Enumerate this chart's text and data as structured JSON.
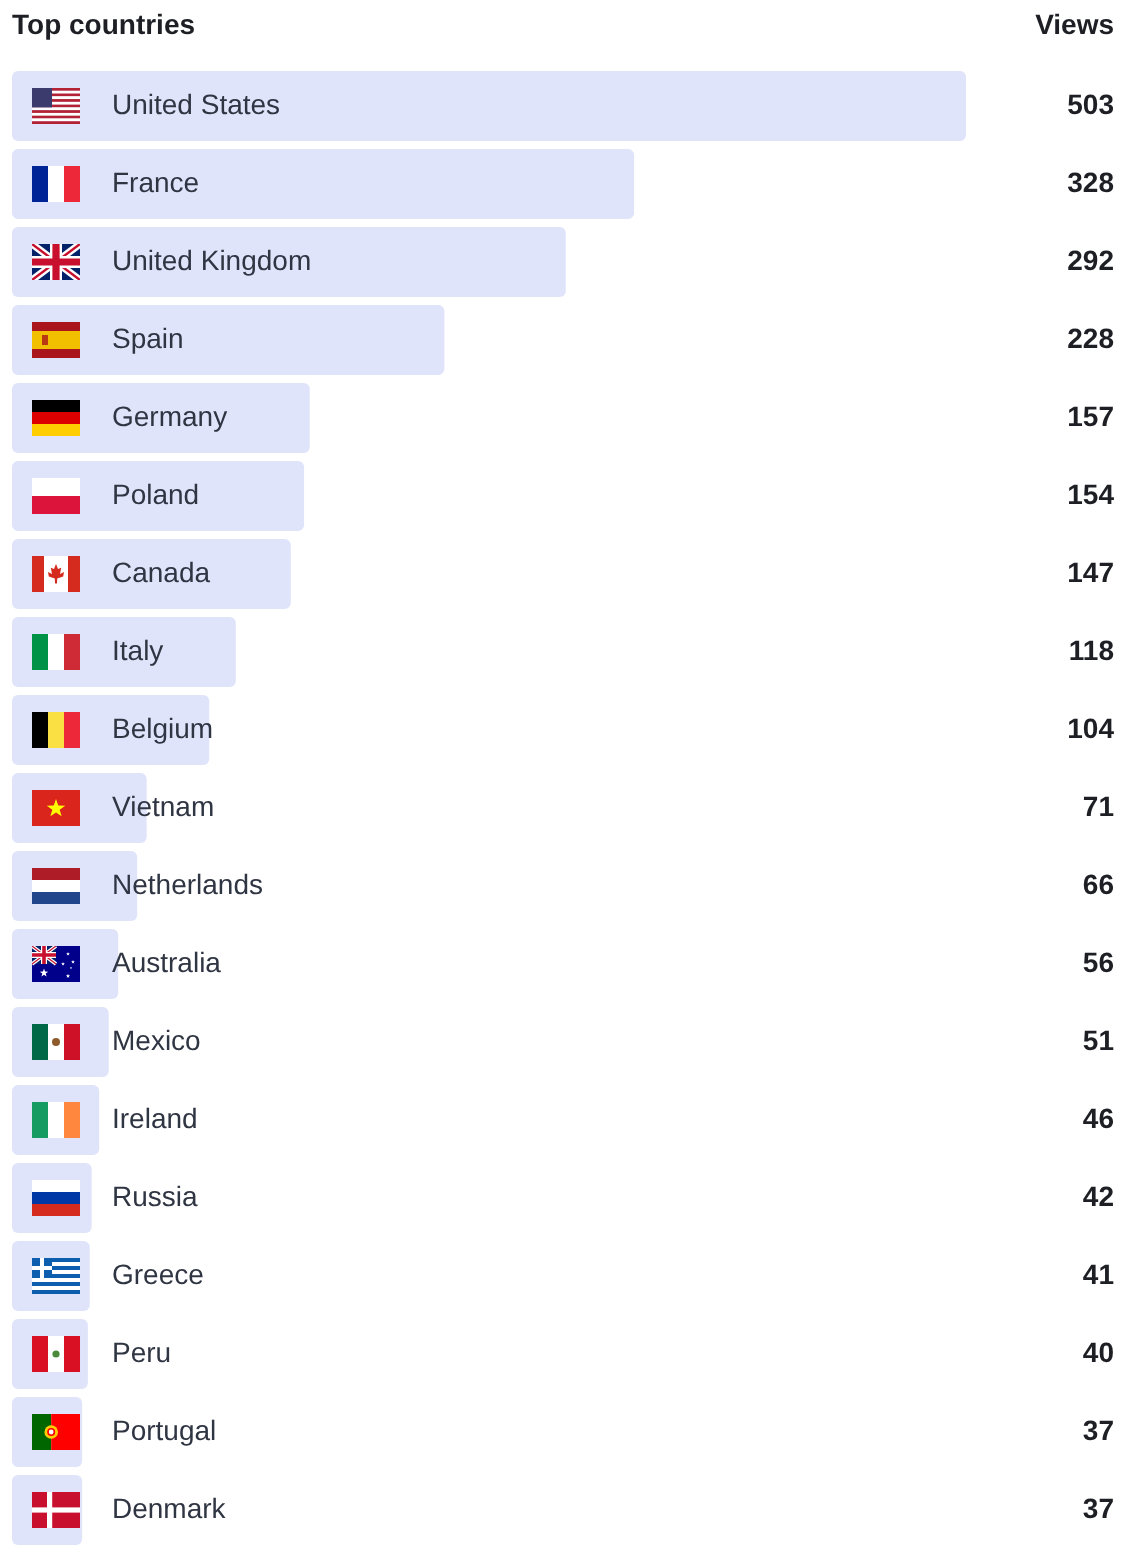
{
  "chart_data": {
    "type": "bar",
    "orientation": "horizontal",
    "title": "Top countries",
    "xlabel": "Views",
    "categories": [
      "United States",
      "France",
      "United Kingdom",
      "Spain",
      "Germany",
      "Poland",
      "Canada",
      "Italy",
      "Belgium",
      "Vietnam",
      "Netherlands",
      "Australia",
      "Mexico",
      "Ireland",
      "Russia",
      "Greece",
      "Peru",
      "Portugal",
      "Denmark"
    ],
    "values": [
      503,
      328,
      292,
      228,
      157,
      154,
      147,
      118,
      104,
      71,
      66,
      56,
      51,
      46,
      42,
      41,
      40,
      37,
      37
    ],
    "color": "#e0e4fa",
    "data_labels": true,
    "legend": false
  }
}
